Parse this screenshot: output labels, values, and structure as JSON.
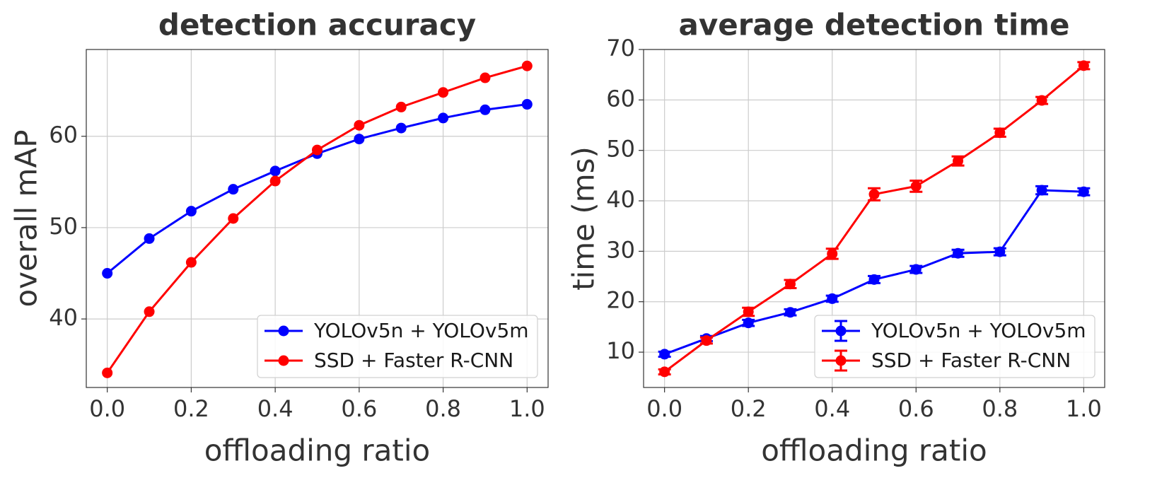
{
  "chart_data": [
    {
      "type": "line",
      "title": "detection accuracy",
      "xlabel": "offloading ratio",
      "ylabel": "overall mAP",
      "xlim": [
        -0.05,
        1.05
      ],
      "ylim": [
        32.5,
        69.5
      ],
      "xticks": [
        0.0,
        0.2,
        0.4,
        0.6,
        0.8,
        1.0
      ],
      "xtick_labels": [
        "0.0",
        "0.2",
        "0.4",
        "0.6",
        "0.8",
        "1.0"
      ],
      "yticks": [
        40,
        50,
        60
      ],
      "ytick_labels": [
        "40",
        "50",
        "60"
      ],
      "grid": true,
      "legend_position": "lower-right",
      "x": [
        0.0,
        0.1,
        0.2,
        0.3,
        0.4,
        0.5,
        0.6,
        0.7,
        0.8,
        0.9,
        1.0
      ],
      "series": [
        {
          "name": "YOLOv5n + YOLOv5m",
          "color": "#0000ff",
          "values": [
            45.0,
            48.8,
            51.8,
            54.2,
            56.2,
            58.1,
            59.7,
            60.9,
            62.0,
            62.9,
            63.5
          ]
        },
        {
          "name": "SSD + Faster R-CNN",
          "color": "#ff0000",
          "values": [
            34.1,
            40.8,
            46.2,
            51.0,
            55.1,
            58.5,
            61.2,
            63.2,
            64.8,
            66.4,
            67.7
          ]
        }
      ]
    },
    {
      "type": "line",
      "title": "average detection time",
      "xlabel": "offloading ratio",
      "ylabel": "time (ms)",
      "xlim": [
        -0.05,
        1.05
      ],
      "ylim": [
        3.0,
        70.0
      ],
      "xticks": [
        0.0,
        0.2,
        0.4,
        0.6,
        0.8,
        1.0
      ],
      "xtick_labels": [
        "0.0",
        "0.2",
        "0.4",
        "0.6",
        "0.8",
        "1.0"
      ],
      "yticks": [
        10,
        20,
        30,
        40,
        50,
        60,
        70
      ],
      "ytick_labels": [
        "10",
        "20",
        "30",
        "40",
        "50",
        "60",
        "70"
      ],
      "grid": true,
      "legend_position": "lower-right",
      "error_bars": true,
      "x": [
        0.0,
        0.1,
        0.2,
        0.3,
        0.4,
        0.5,
        0.6,
        0.7,
        0.8,
        0.9,
        1.0
      ],
      "series": [
        {
          "name": "YOLOv5n + YOLOv5m",
          "color": "#0000ff",
          "values": [
            9.6,
            12.7,
            15.8,
            17.9,
            20.6,
            24.4,
            26.4,
            29.6,
            29.9,
            42.1,
            41.8
          ],
          "errors": [
            0.5,
            0.5,
            0.6,
            0.6,
            0.6,
            0.7,
            0.7,
            0.7,
            0.7,
            0.8,
            0.7
          ]
        },
        {
          "name": "SSD + Faster R-CNN",
          "color": "#ff0000",
          "values": [
            6.1,
            12.3,
            18.0,
            23.5,
            29.5,
            41.3,
            42.9,
            47.9,
            53.5,
            59.9,
            66.8
          ],
          "errors": [
            0.5,
            0.6,
            0.8,
            0.8,
            1.0,
            1.2,
            1.1,
            0.9,
            0.8,
            0.7,
            0.7
          ]
        }
      ]
    }
  ]
}
